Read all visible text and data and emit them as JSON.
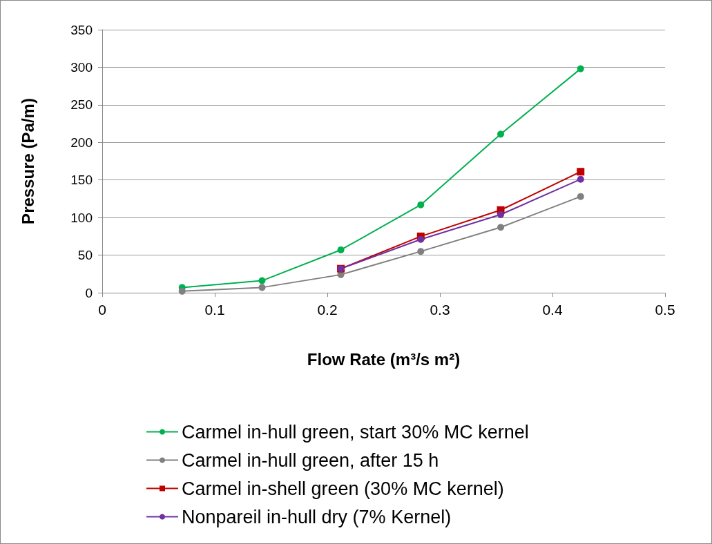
{
  "chart_data": {
    "type": "line",
    "xlabel": "Flow Rate (m³/s m²)",
    "ylabel": "Pressure (Pa/m)",
    "xlim": [
      0,
      0.5
    ],
    "xticks": [
      0,
      0.1,
      0.2,
      0.3,
      0.4,
      0.5
    ],
    "ylim": [
      0,
      350
    ],
    "yticks": [
      0,
      50,
      100,
      150,
      200,
      250,
      300,
      350
    ],
    "grid": "y",
    "legend": "bottom",
    "marker": "circle",
    "line_style": "solid",
    "series": [
      {
        "name": "Carmel in-hull green, start 30% MC kernel",
        "color": "#00b050",
        "x": [
          0.071,
          0.142,
          0.212,
          0.283,
          0.354,
          0.425
        ],
        "values": [
          7,
          16,
          57,
          117,
          211,
          298
        ]
      },
      {
        "name": "Carmel in-hull green, after 15 h",
        "color": "#808080",
        "x": [
          0.071,
          0.142,
          0.212,
          0.283,
          0.354,
          0.425
        ],
        "values": [
          2,
          7,
          24,
          55,
          87,
          128
        ]
      },
      {
        "name": "Carmel in-shell green (30% MC kernel)",
        "color": "#c00000",
        "marker": "square",
        "x": [
          0.212,
          0.283,
          0.354,
          0.425
        ],
        "values": [
          32,
          75,
          110,
          161
        ]
      },
      {
        "name": "Nonpareil in-hull dry (7% Kernel)",
        "color": "#7030a0",
        "x": [
          0.212,
          0.283,
          0.354,
          0.425
        ],
        "values": [
          32,
          71,
          104,
          151
        ]
      }
    ]
  }
}
